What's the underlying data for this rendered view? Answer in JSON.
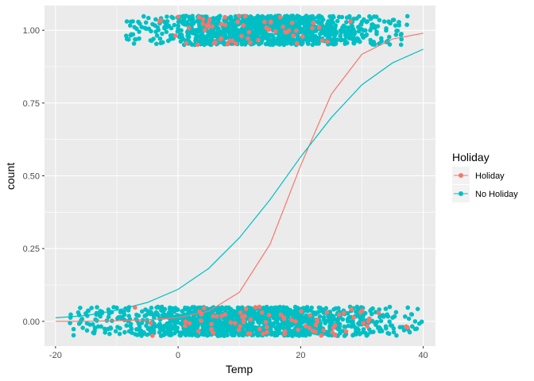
{
  "chart_data": {
    "type": "scatter",
    "xlabel": "Temp",
    "ylabel": "count",
    "xlim": [
      -21.8,
      42.0
    ],
    "ylim": [
      -0.085,
      1.085
    ],
    "x_ticks": [
      -20,
      0,
      20,
      40
    ],
    "x_tick_labels": [
      "-20",
      "0",
      "20",
      "40"
    ],
    "y_ticks": [
      0,
      0.25,
      0.5,
      0.75,
      1.0
    ],
    "y_tick_labels": [
      "0.00",
      "0.25",
      "0.50",
      "0.75",
      "1.00"
    ],
    "grid": true,
    "legend": {
      "title": "Holiday",
      "position": "right",
      "entries": [
        "Holiday",
        "No Holiday"
      ]
    },
    "colors": {
      "Holiday": "#F8766D",
      "No Holiday": "#00BFC4",
      "panel": "#EBEBEB",
      "grid": "#FFFFFF"
    },
    "series": [
      {
        "name": "Holiday",
        "color": "#F8766D",
        "fitted_line": {
          "x": [
            -20,
            -15,
            -10,
            -5,
            0,
            5,
            10,
            15,
            20,
            25,
            30,
            35,
            40
          ],
          "y": [
            0.0,
            0.0,
            0.002,
            0.005,
            0.013,
            0.035,
            0.1,
            0.265,
            0.535,
            0.78,
            0.918,
            0.97,
            0.99
          ]
        },
        "points_count1": {
          "x_range": [
            -4,
            29
          ],
          "jitter": 0.05
        },
        "points_count0": {
          "x_range": [
            -8,
            38
          ],
          "jitter": 0.05
        }
      },
      {
        "name": "No Holiday",
        "color": "#00BFC4",
        "fitted_line": {
          "x": [
            -20,
            -15,
            -10,
            -5,
            0,
            5,
            10,
            15,
            20,
            25,
            30,
            35,
            40
          ],
          "y": [
            0.012,
            0.02,
            0.038,
            0.065,
            0.11,
            0.182,
            0.287,
            0.418,
            0.565,
            0.7,
            0.813,
            0.888,
            0.935
          ]
        },
        "points_count1": {
          "x_range": [
            -8.5,
            37.5
          ],
          "jitter": 0.05
        },
        "points_count0": {
          "x_range": [
            -18,
            40
          ],
          "jitter": 0.05
        }
      }
    ]
  }
}
